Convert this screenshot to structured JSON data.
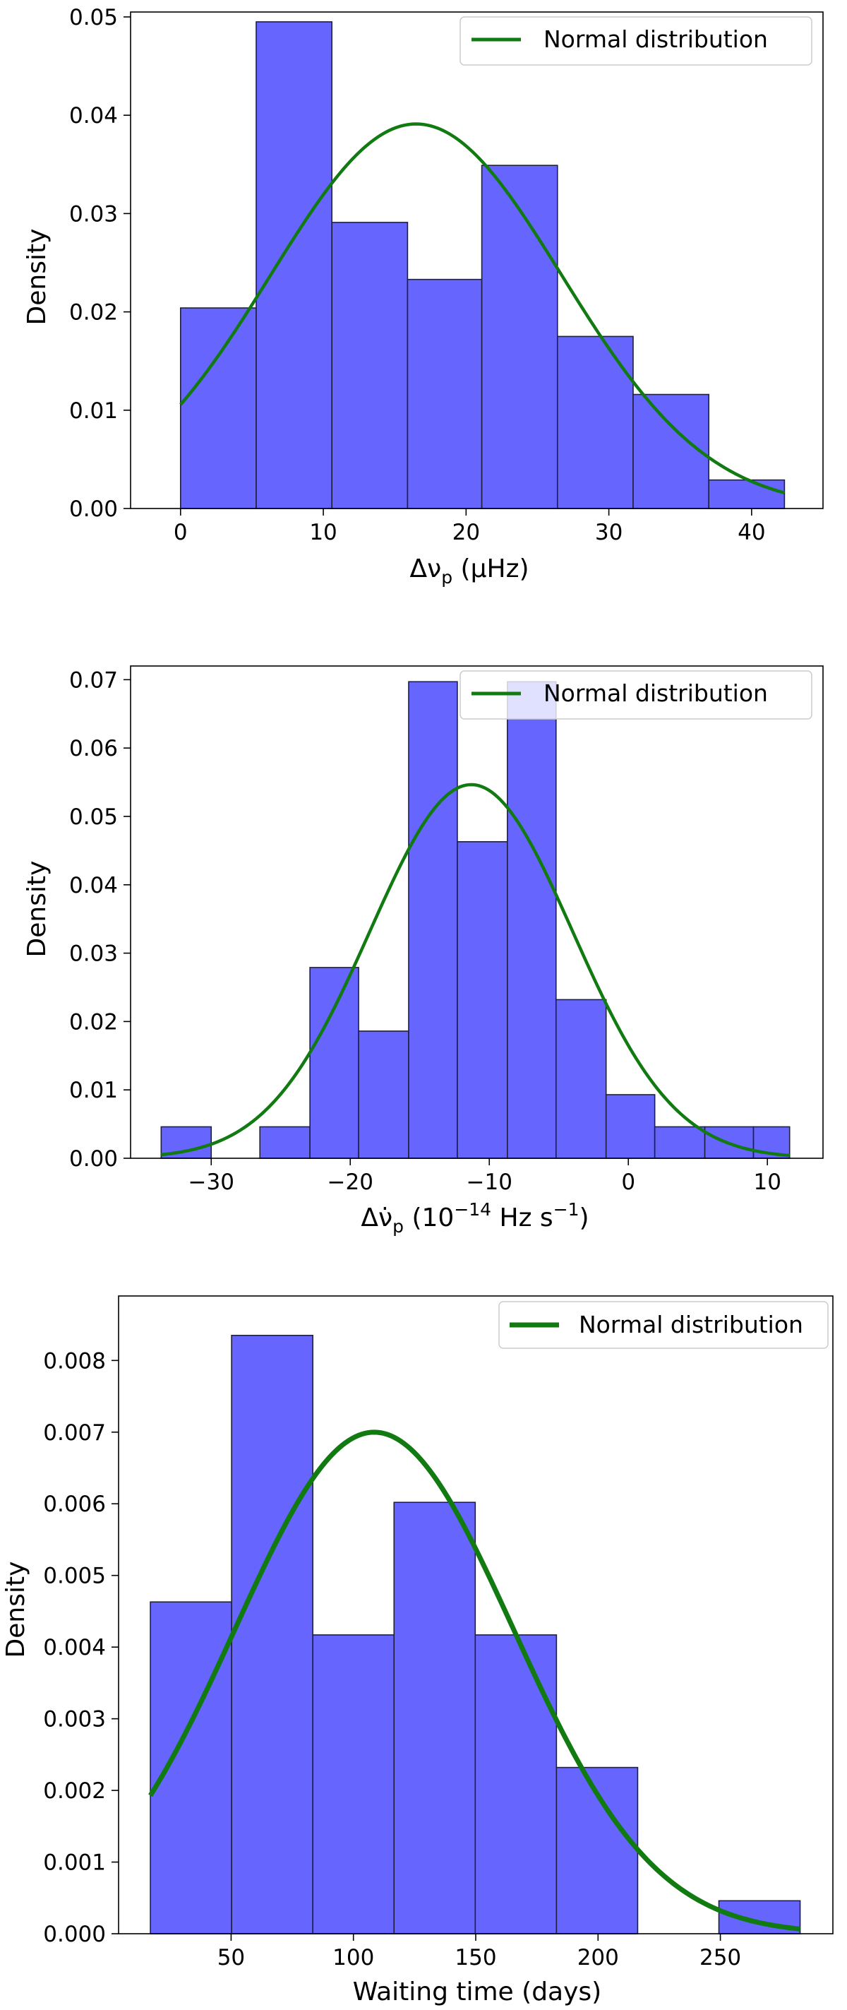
{
  "chart_data": [
    {
      "type": "bar",
      "title": "",
      "xlabel": "Δν_p (μHz)",
      "xlabel_parts": {
        "prefix": "Δν",
        "sub": "p",
        "suffix": " (μHz)"
      },
      "ylabel": "Density",
      "xlim": [
        -3.5,
        45
      ],
      "ylim": [
        0,
        0.0505
      ],
      "xticks": [
        0,
        10,
        20,
        30,
        40
      ],
      "xtick_labels": [
        "0",
        "10",
        "20",
        "30",
        "40"
      ],
      "yticks": [
        0.0,
        0.01,
        0.02,
        0.03,
        0.04,
        0.05
      ],
      "ytick_labels": [
        "0.00",
        "0.01",
        "0.02",
        "0.03",
        "0.04",
        "0.05"
      ],
      "bin_edges": [
        0,
        5.3,
        10.6,
        15.9,
        21.1,
        26.4,
        31.7,
        37.0,
        42.3
      ],
      "values": [
        0.0204,
        0.0495,
        0.0291,
        0.0233,
        0.0349,
        0.0175,
        0.0116,
        0.0029
      ],
      "normal_fit": {
        "label": "Normal distribution",
        "mean": 16.5,
        "std": 10.2,
        "x_range": [
          0,
          42.3
        ]
      },
      "legend": {
        "entries": [
          "Normal distribution"
        ],
        "location": "upper right"
      },
      "colors": {
        "bars": "#6666ff",
        "bar_edge": "#1f1f3f",
        "curve": "#117a11"
      }
    },
    {
      "type": "bar",
      "title": "",
      "xlabel": "Δν̇_p (10^−14 Hz s^−1)",
      "xlabel_parts": {
        "prefix": "Δν̇",
        "sub": "p",
        "unit_open": " (10",
        "exp1": "−14",
        "unit_mid": " Hz s",
        "exp2": "−1",
        "unit_close": ")"
      },
      "ylabel": "Density",
      "xlim": [
        -35.8,
        14.0
      ],
      "ylim": [
        0,
        0.072
      ],
      "xticks": [
        -30,
        -20,
        -10,
        0,
        10
      ],
      "xtick_labels": [
        "−30",
        "−20",
        "−10",
        "0",
        "10"
      ],
      "yticks": [
        0.0,
        0.01,
        0.02,
        0.03,
        0.04,
        0.05,
        0.06,
        0.07
      ],
      "ytick_labels": [
        "0.00",
        "0.01",
        "0.02",
        "0.03",
        "0.04",
        "0.05",
        "0.06",
        "0.07"
      ],
      "bin_edges": [
        -33.6,
        -30.0,
        -26.5,
        -22.9,
        -19.4,
        -15.8,
        -12.3,
        -8.7,
        -5.2,
        -1.6,
        1.9,
        5.5,
        9.0,
        11.6
      ],
      "values": [
        0.0046,
        0.0,
        0.0046,
        0.0279,
        0.0186,
        0.0697,
        0.0463,
        0.0697,
        0.0232,
        0.0093,
        0.0046,
        0.0046,
        0.0046
      ],
      "normal_fit": {
        "label": "Normal distribution",
        "mean": -11.3,
        "std": 7.3,
        "x_range": [
          -33.6,
          11.6
        ]
      },
      "legend": {
        "entries": [
          "Normal distribution"
        ],
        "location": "upper right"
      },
      "colors": {
        "bars": "#6666ff",
        "bar_edge": "#1f1f3f",
        "curve": "#117a11"
      }
    },
    {
      "type": "bar",
      "title": "",
      "xlabel": "Waiting time (days)",
      "ylabel": "Density",
      "xlim": [
        4,
        296
      ],
      "ylim": [
        0,
        0.0089
      ],
      "xticks": [
        50,
        100,
        150,
        200,
        250
      ],
      "xtick_labels": [
        "50",
        "100",
        "150",
        "200",
        "250"
      ],
      "yticks": [
        0.0,
        0.001,
        0.002,
        0.003,
        0.004,
        0.005,
        0.006,
        0.007,
        0.008
      ],
      "ytick_labels": [
        "0.000",
        "0.001",
        "0.002",
        "0.003",
        "0.004",
        "0.005",
        "0.006",
        "0.007",
        "0.008"
      ],
      "bin_edges": [
        17,
        50.2,
        83.4,
        116.6,
        149.8,
        183.0,
        216.2,
        249.4,
        282.6
      ],
      "values": [
        0.00463,
        0.00835,
        0.00417,
        0.00602,
        0.00417,
        0.00232,
        0.0,
        0.00046
      ],
      "normal_fit": {
        "label": "Normal distribution",
        "mean": 108.5,
        "std": 57,
        "x_range": [
          17,
          282.6
        ]
      },
      "legend": {
        "entries": [
          "Normal distribution"
        ],
        "location": "upper right"
      },
      "colors": {
        "bars": "#6666ff",
        "bar_edge": "#1f1f3f",
        "curve": "#117a11"
      }
    }
  ]
}
